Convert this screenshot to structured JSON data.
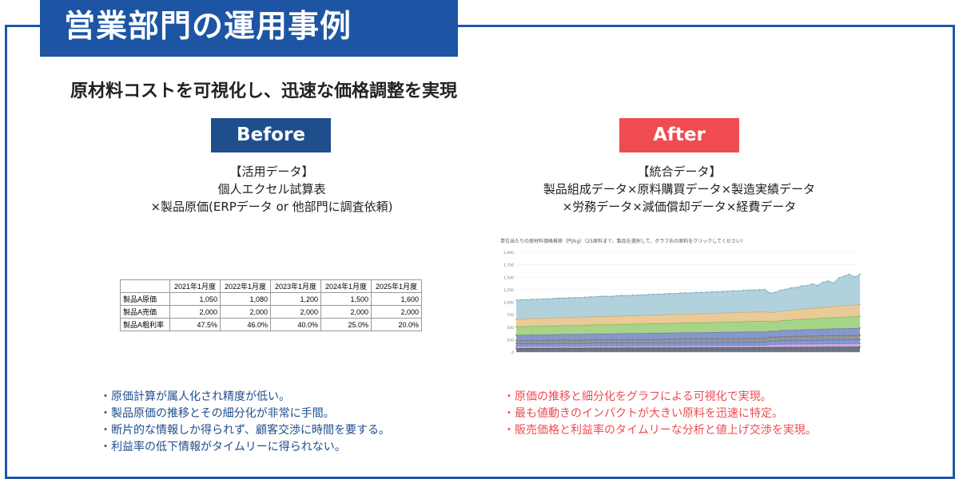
{
  "header": {
    "title": "営業部門の運用事例",
    "subtitle": "原材料コストを可視化し、迅速な価格調整を実現"
  },
  "before": {
    "badge": "Before",
    "lines": [
      "【活用データ】",
      "個人エクセル試算表",
      "×製品原価(ERPデータ or 他部門に調査依頼)"
    ],
    "table": {
      "headers": [
        "",
        "2021年1月度",
        "2022年1月度",
        "2023年1月度",
        "2024年1月度",
        "2025年1月度"
      ],
      "rows": [
        [
          "製品A原価",
          "1,050",
          "1,080",
          "1,200",
          "1,500",
          "1,600"
        ],
        [
          "製品A売価",
          "2,000",
          "2,000",
          "2,000",
          "2,000",
          "2,000"
        ],
        [
          "製品A粗利率",
          "47.5%",
          "46.0%",
          "40.0%",
          "25.0%",
          "20.0%"
        ]
      ]
    },
    "bullets": [
      "・原価計算が属人化され精度が低い。",
      "・製品原価の推移とその細分化が非常に手間。",
      "・断片的な情報しか得られず、顧客交渉に時間を要する。",
      "・利益率の低下情報がタイムリーに得られない。"
    ]
  },
  "after": {
    "badge": "After",
    "lines": [
      "【統合データ】",
      "製品組成データ×原料購買データ×製造実績データ",
      "×労務データ×減価償却データ×経費データ"
    ],
    "chart_title": "単位当たりの原材料価格推移（円/kg）（25原料まで、製品を選択して、グラフ右の原料をクリックしてください）",
    "bullets": [
      "・原価の推移と細分化をグラフによる可視化で実現。",
      "・最も値動きのインパクトが大きい原料を迅速に特定。",
      "・販売価格と利益率のタイムリーな分析と値上げ交渉を実現。"
    ]
  },
  "colors": {
    "brand_blue": "#1d55a4",
    "before_blue": "#1f4e8c",
    "after_red": "#ef4b51"
  },
  "chart_data": {
    "type": "area",
    "title": "単位当たりの原材料価格推移（円/kg）（25原料まで、製品を選択して、グラフ右の原料をクリックしてください）",
    "ylim": [
      0,
      2000
    ],
    "y_ticks": [
      "0",
      "250",
      "500",
      "750",
      "1,000",
      "1,250",
      "1,500",
      "1,750",
      "2,000"
    ],
    "series": [
      {
        "values": [
          80,
          80,
          80,
          82,
          82,
          80,
          82,
          82,
          84,
          84,
          84,
          82,
          82,
          84,
          84,
          86,
          86,
          86,
          86,
          86,
          86,
          88,
          86,
          88,
          88,
          88,
          88,
          88,
          90,
          90,
          90,
          90,
          92,
          92,
          92,
          92,
          92,
          92,
          92,
          94,
          94,
          94,
          94,
          94,
          96,
          96,
          96,
          96,
          98,
          98,
          98,
          100,
          100,
          100,
          100,
          102,
          100,
          102,
          104,
          104,
          104,
          104,
          104,
          106,
          106,
          108
        ]
      },
      {
        "values": [
          40,
          40,
          40,
          40,
          40,
          40,
          40,
          40,
          40,
          40,
          40,
          40,
          40,
          40,
          40,
          40,
          40,
          40,
          40,
          40,
          40,
          40,
          40,
          40,
          40,
          40,
          40,
          40,
          40,
          40,
          40,
          40,
          40,
          40,
          40,
          40,
          40,
          40,
          40,
          40,
          40,
          40,
          40,
          40,
          40,
          40,
          40,
          40,
          55,
          55,
          60,
          60,
          60,
          62,
          62,
          62,
          62,
          62,
          62,
          64,
          64,
          64,
          64,
          64,
          64,
          64
        ]
      },
      {
        "values": [
          50,
          50,
          52,
          52,
          52,
          52,
          52,
          54,
          54,
          54,
          54,
          54,
          54,
          56,
          56,
          56,
          56,
          56,
          56,
          56,
          58,
          58,
          58,
          58,
          58,
          58,
          58,
          58,
          58,
          60,
          60,
          60,
          60,
          60,
          60,
          60,
          60,
          60,
          62,
          62,
          62,
          62,
          62,
          62,
          62,
          62,
          62,
          62,
          70,
          70,
          72,
          72,
          72,
          74,
          74,
          74,
          74,
          74,
          76,
          76,
          76,
          76,
          78,
          78,
          78,
          78
        ]
      },
      {
        "values": [
          60,
          60,
          60,
          62,
          62,
          62,
          62,
          62,
          64,
          64,
          64,
          64,
          64,
          64,
          66,
          66,
          66,
          66,
          66,
          68,
          68,
          68,
          68,
          68,
          68,
          70,
          70,
          70,
          70,
          70,
          70,
          72,
          72,
          72,
          72,
          72,
          72,
          74,
          74,
          74,
          74,
          74,
          74,
          76,
          76,
          76,
          76,
          76,
          80,
          80,
          82,
          82,
          82,
          84,
          84,
          84,
          86,
          86,
          86,
          86,
          88,
          88,
          88,
          88,
          90,
          90
        ]
      },
      {
        "values": [
          110,
          110,
          112,
          112,
          112,
          114,
          114,
          114,
          114,
          116,
          116,
          116,
          118,
          118,
          118,
          118,
          120,
          120,
          120,
          120,
          122,
          122,
          122,
          122,
          124,
          124,
          124,
          126,
          126,
          126,
          126,
          128,
          128,
          128,
          128,
          130,
          130,
          130,
          130,
          132,
          132,
          132,
          134,
          134,
          134,
          136,
          136,
          136,
          120,
          120,
          124,
          124,
          126,
          128,
          130,
          132,
          134,
          134,
          136,
          136,
          138,
          140,
          140,
          142,
          142,
          144
        ]
      },
      {
        "values": [
          170,
          172,
          172,
          174,
          172,
          174,
          176,
          176,
          176,
          178,
          178,
          180,
          180,
          180,
          182,
          182,
          184,
          184,
          184,
          186,
          186,
          186,
          188,
          188,
          190,
          190,
          190,
          192,
          192,
          194,
          194,
          194,
          196,
          196,
          198,
          198,
          200,
          200,
          200,
          202,
          202,
          204,
          204,
          206,
          206,
          208,
          208,
          210,
          190,
          192,
          196,
          200,
          204,
          206,
          208,
          212,
          214,
          216,
          220,
          222,
          224,
          226,
          228,
          232,
          234,
          236
        ]
      },
      {
        "values": [
          150,
          152,
          152,
          154,
          154,
          154,
          156,
          156,
          158,
          158,
          158,
          160,
          160,
          160,
          162,
          162,
          164,
          164,
          164,
          166,
          166,
          168,
          168,
          168,
          170,
          170,
          172,
          172,
          172,
          174,
          174,
          176,
          176,
          176,
          178,
          178,
          180,
          180,
          180,
          182,
          182,
          184,
          184,
          186,
          186,
          186,
          188,
          188,
          180,
          182,
          186,
          190,
          194,
          198,
          200,
          204,
          208,
          210,
          214,
          218,
          220,
          224,
          228,
          230,
          232,
          236
        ]
      },
      {
        "values": [
          380,
          384,
          384,
          380,
          386,
          388,
          386,
          390,
          392,
          388,
          394,
          396,
          392,
          398,
          400,
          396,
          402,
          404,
          400,
          406,
          408,
          404,
          410,
          412,
          408,
          414,
          416,
          412,
          418,
          420,
          416,
          422,
          424,
          420,
          426,
          428,
          424,
          430,
          432,
          428,
          434,
          436,
          432,
          438,
          440,
          436,
          442,
          446,
          390,
          400,
          420,
          430,
          450,
          440,
          470,
          460,
          490,
          450,
          500,
          520,
          470,
          560,
          590,
          620,
          560,
          600
        ]
      }
    ]
  }
}
